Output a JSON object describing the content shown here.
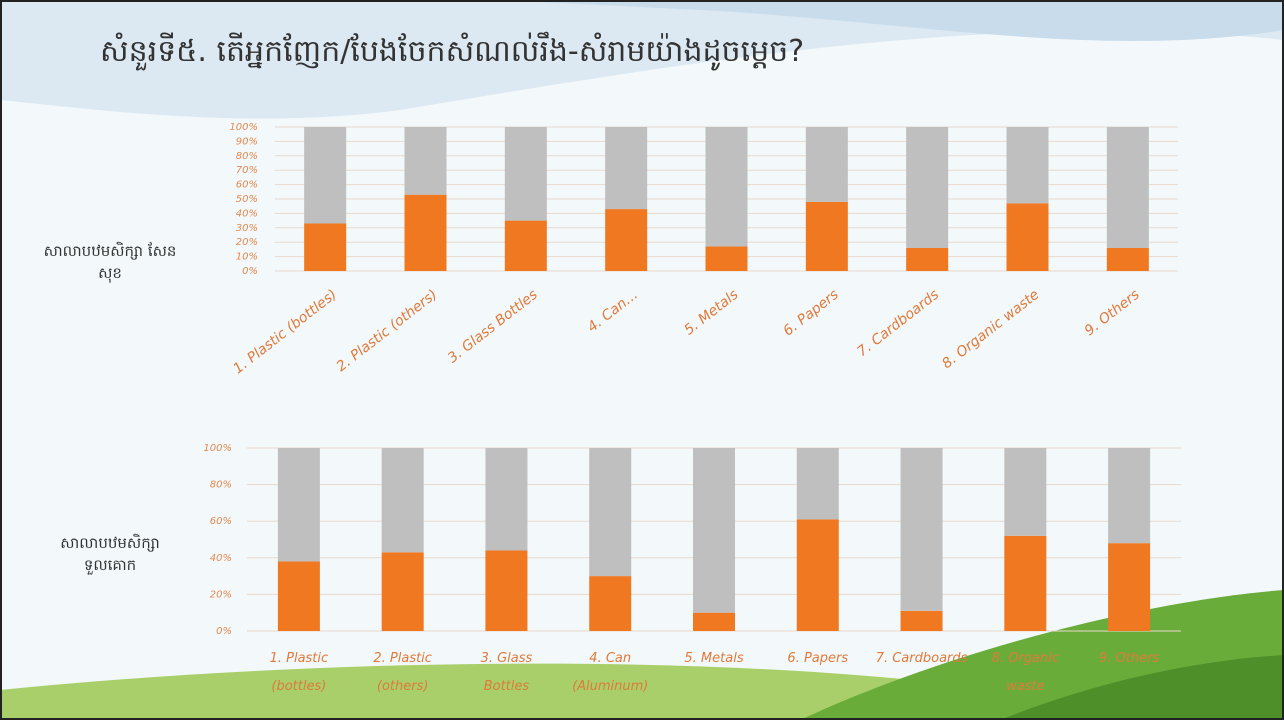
{
  "title": "សំនួរទី៥. តើអ្នកញែក/បែងចែកសំណល់រឹង-សំរាមយ៉ាងដូចម្តេច?",
  "chart_data": [
    {
      "type": "bar",
      "stacked": true,
      "label": "សាលាបឋមសិក្សា សែនសុខ",
      "categories": [
        "1. Plastic (bottles)",
        "2. Plastic (others)",
        "3. Glass Bottles",
        "4. Can…",
        "5. Metals",
        "6. Papers",
        "7. Cardboards",
        "8. Organic waste",
        "9. Others"
      ],
      "series": [
        {
          "color": "#f07820",
          "values": [
            33,
            53,
            35,
            43,
            17,
            48,
            16,
            47,
            16
          ]
        },
        {
          "color": "#bfbfbf",
          "values": [
            67,
            47,
            65,
            57,
            83,
            52,
            84,
            53,
            84
          ]
        }
      ],
      "ylim": [
        0,
        100
      ],
      "yticks": [
        {
          "value": 0,
          "label": "0%"
        },
        {
          "value": 10,
          "label": "10%"
        },
        {
          "value": 20,
          "label": "20%"
        },
        {
          "value": 30,
          "label": "30%"
        },
        {
          "value": 40,
          "label": "40%"
        },
        {
          "value": 50,
          "label": "50%"
        },
        {
          "value": 60,
          "label": "60%"
        },
        {
          "value": 70,
          "label": "70%"
        },
        {
          "value": 80,
          "label": "80%"
        },
        {
          "value": 90,
          "label": "90%"
        },
        {
          "value": 100,
          "label": "100%"
        }
      ],
      "grid": true
    },
    {
      "type": "bar",
      "stacked": true,
      "label": "សាលាបឋមសិក្សា ទួលគោក",
      "categories": [
        "1. Plastic (bottles)",
        "2. Plastic (others)",
        "3. Glass Bottles",
        "4. Can (Aluminum)",
        "5. Metals",
        "6. Papers",
        "7. Cardboards",
        "8. Organic waste",
        "9. Others"
      ],
      "series": [
        {
          "color": "#f07820",
          "values": [
            38,
            43,
            44,
            30,
            10,
            61,
            11,
            52,
            48
          ]
        },
        {
          "color": "#bfbfbf",
          "values": [
            62,
            57,
            56,
            70,
            90,
            39,
            89,
            48,
            52
          ]
        }
      ],
      "ylim": [
        0,
        100
      ],
      "yticks": [
        {
          "value": 0,
          "label": "0%"
        },
        {
          "value": 20,
          "label": "20%"
        },
        {
          "value": 40,
          "label": "40%"
        },
        {
          "value": 60,
          "label": "60%"
        },
        {
          "value": 80,
          "label": "80%"
        },
        {
          "value": 100,
          "label": "100%"
        }
      ],
      "grid": true
    }
  ]
}
